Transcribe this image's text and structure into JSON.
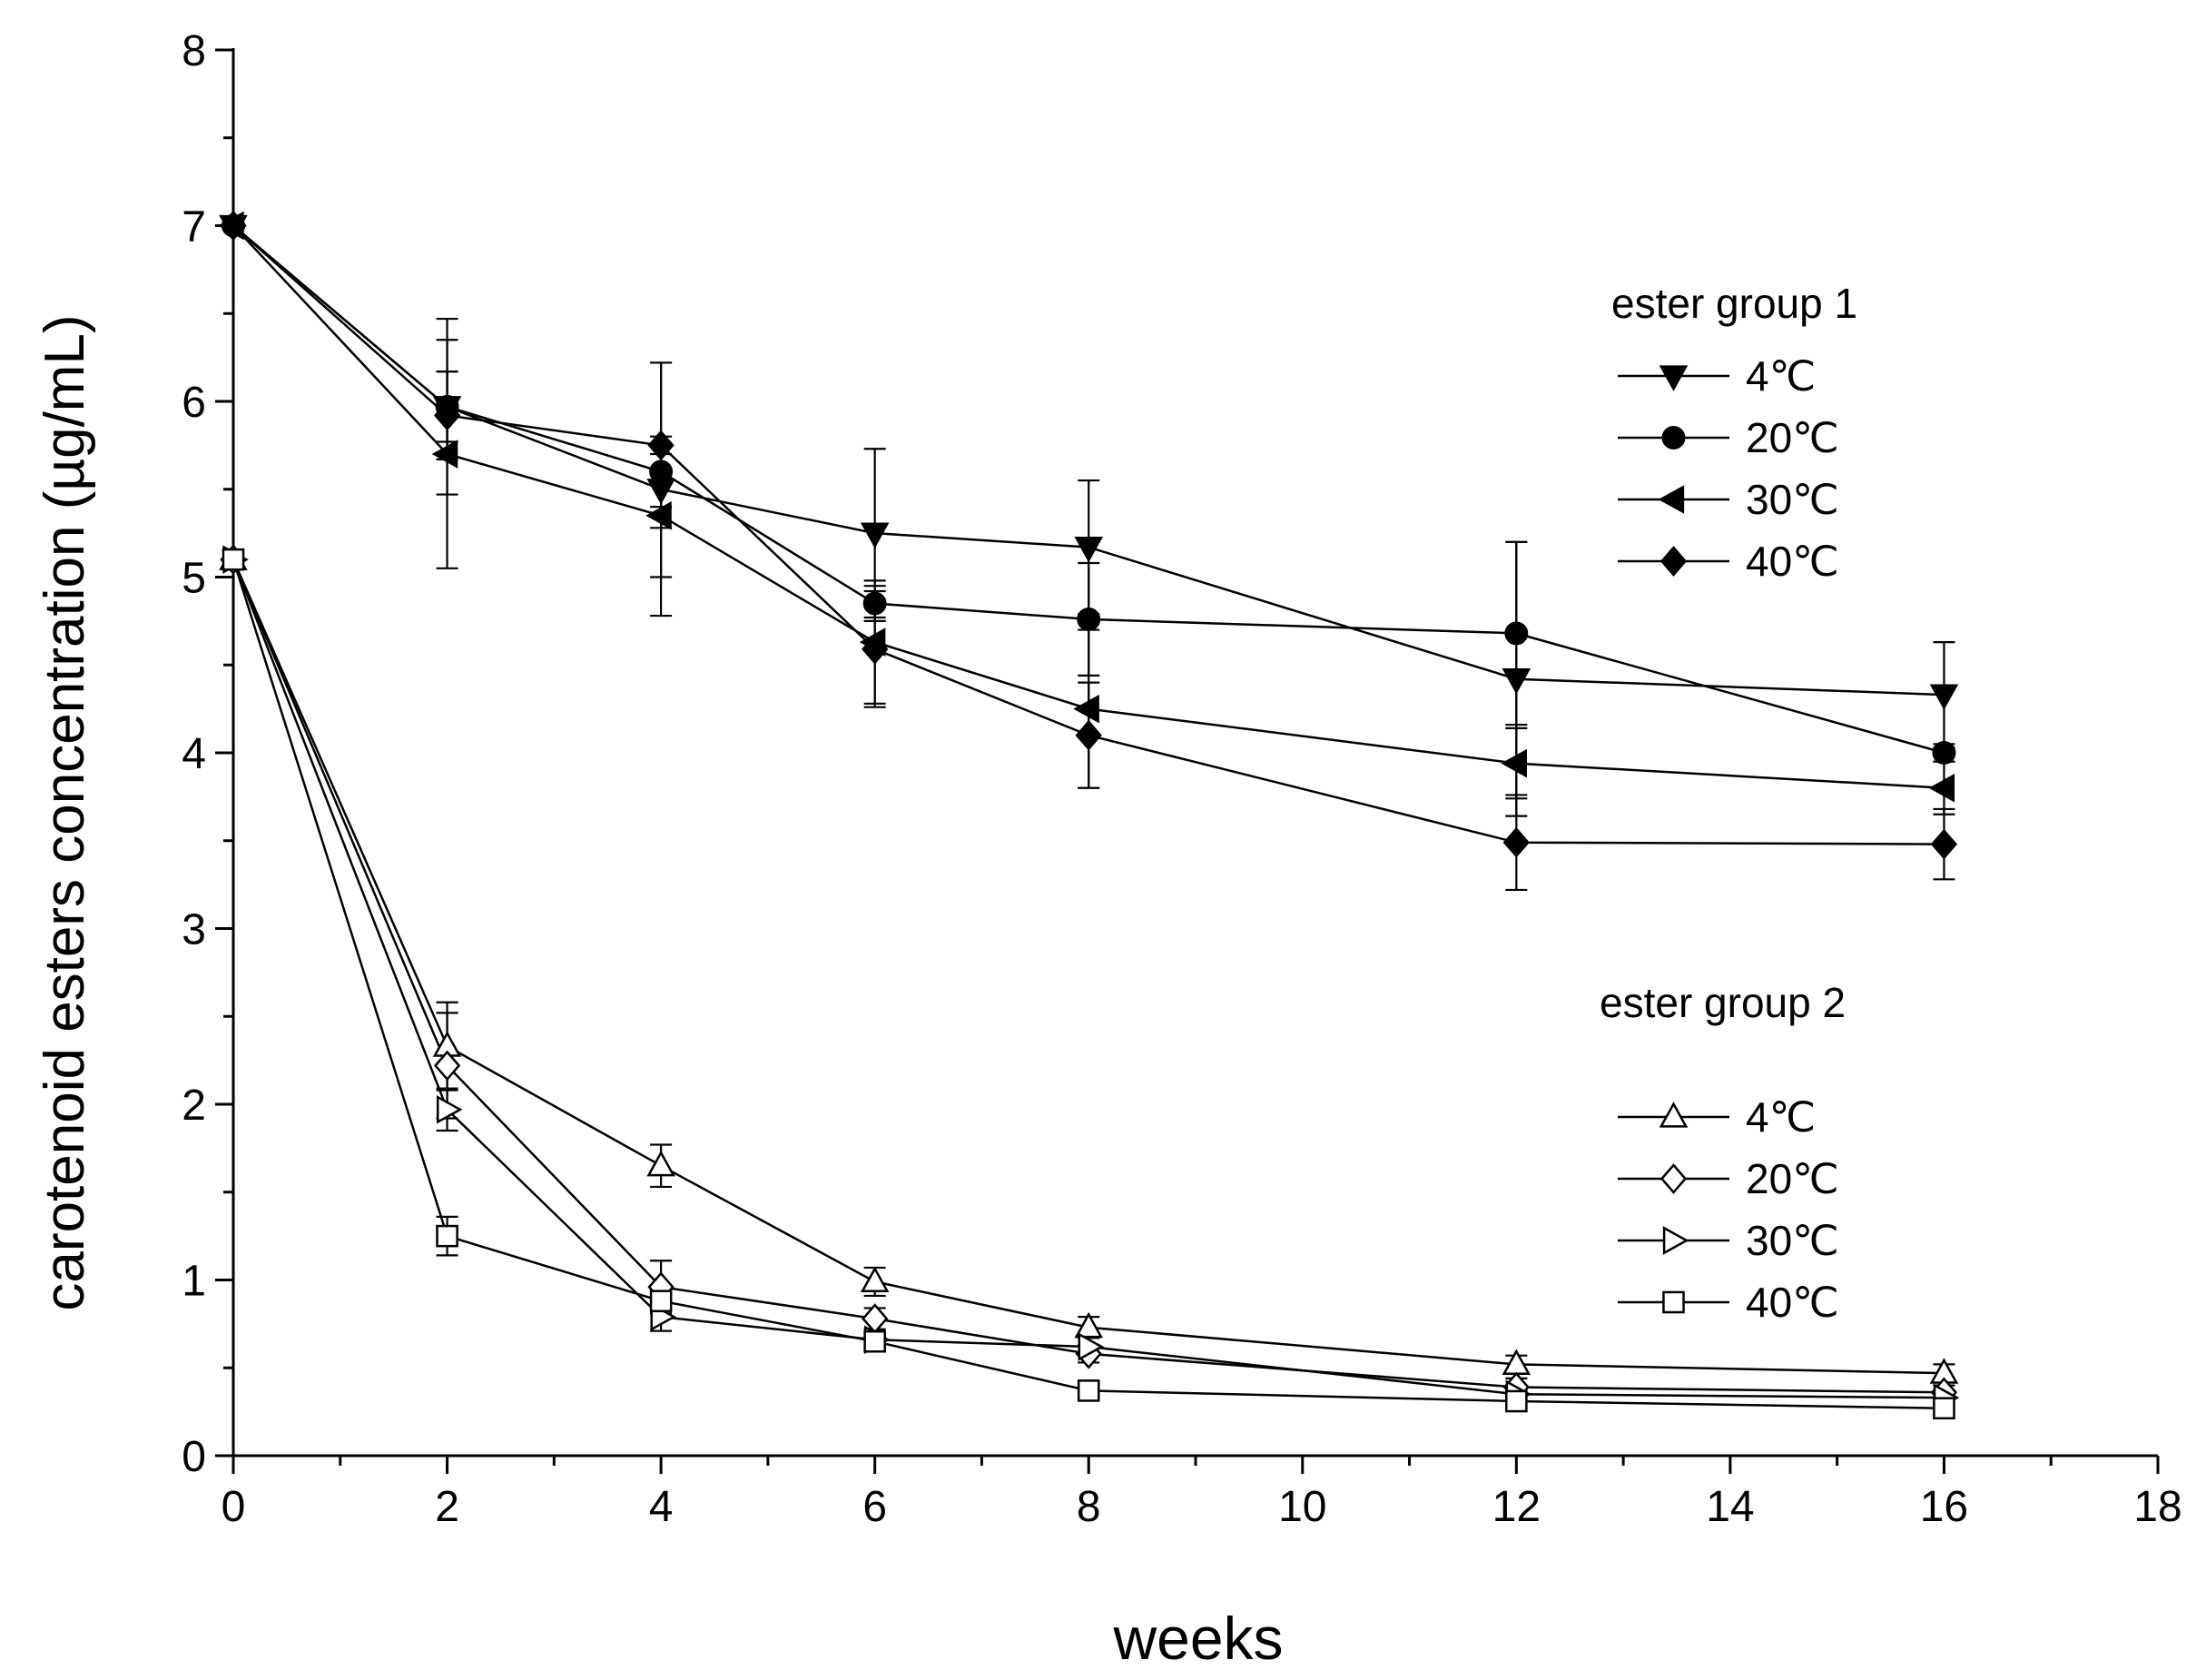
{
  "chart_data": {
    "type": "line",
    "title": "",
    "xlabel": "weeks",
    "ylabel": "carotenoid esters concentration (µg/mL)",
    "xlim": [
      0,
      18
    ],
    "ylim": [
      0,
      8
    ],
    "x_ticks": [
      0,
      2,
      4,
      6,
      8,
      10,
      12,
      14,
      16,
      18
    ],
    "y_ticks": [
      0,
      1,
      2,
      3,
      4,
      5,
      6,
      7,
      8
    ],
    "x": [
      0,
      2,
      4,
      6,
      8,
      12,
      16
    ],
    "groups": [
      {
        "name": "ester group 1",
        "legend_position": "top-right",
        "series": [
          {
            "name": "4℃",
            "marker": "triangle-down",
            "filled": true,
            "values": [
              7.0,
              5.97,
              5.5,
              5.25,
              5.17,
              4.42,
              4.33
            ],
            "errors": [
              0.0,
              0.5,
              0.72,
              0.48,
              0.38,
              0.78,
              0.3
            ]
          },
          {
            "name": "20℃",
            "marker": "circle",
            "filled": true,
            "values": [
              7.0,
              5.97,
              5.6,
              4.85,
              4.76,
              4.68,
              4.0
            ],
            "errors": [
              0.0,
              0.2,
              0.2,
              0.1,
              0.32,
              0.52,
              0.05
            ]
          },
          {
            "name": "30℃",
            "marker": "triangle-left",
            "filled": true,
            "values": [
              7.0,
              5.7,
              5.35,
              4.63,
              4.25,
              3.94,
              3.8
            ],
            "errors": [
              0.0,
              0.65,
              0.35,
              0.35,
              0.45,
              0.2,
              0.15
            ]
          },
          {
            "name": "40℃",
            "marker": "diamond",
            "filled": true,
            "values": [
              7.0,
              5.92,
              5.75,
              4.59,
              4.1,
              3.49,
              3.48
            ],
            "errors": [
              0.0,
              0.25,
              0.47,
              0.33,
              0.3,
              0.27,
              0.2
            ]
          }
        ]
      },
      {
        "name": "ester group 2",
        "legend_position": "bottom-right",
        "series": [
          {
            "name": "4℃",
            "marker": "triangle-up",
            "filled": false,
            "values": [
              5.1,
              2.33,
              1.65,
              0.99,
              0.73,
              0.52,
              0.47
            ],
            "errors": [
              0.0,
              0.25,
              0.12,
              0.08,
              0.06,
              0.05,
              0.05
            ]
          },
          {
            "name": "20℃",
            "marker": "diamond",
            "filled": false,
            "values": [
              5.1,
              2.22,
              0.96,
              0.78,
              0.58,
              0.39,
              0.36
            ],
            "errors": [
              0.0,
              0.3,
              0.15,
              0.06,
              0.05,
              0.05,
              0.04
            ]
          },
          {
            "name": "30℃",
            "marker": "triangle-right",
            "filled": false,
            "values": [
              5.1,
              1.97,
              0.79,
              0.66,
              0.62,
              0.35,
              0.33
            ],
            "errors": [
              0.0,
              0.12,
              0.08,
              0.05,
              0.05,
              0.04,
              0.04
            ]
          },
          {
            "name": "40℃",
            "marker": "square",
            "filled": false,
            "values": [
              5.1,
              1.25,
              0.88,
              0.65,
              0.37,
              0.31,
              0.27
            ],
            "errors": [
              0.0,
              0.11,
              0.05,
              0.04,
              0.03,
              0.03,
              0.03
            ]
          }
        ]
      }
    ]
  }
}
